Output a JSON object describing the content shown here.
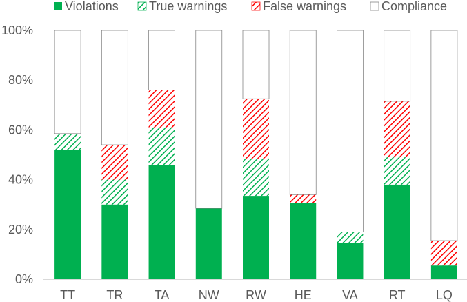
{
  "chart_data": {
    "type": "bar",
    "stacked": true,
    "categories": [
      "TT",
      "TR",
      "TA",
      "NW",
      "RW",
      "HE",
      "VA",
      "RT",
      "LQ"
    ],
    "series": [
      {
        "name": "Violations",
        "values": [
          52,
          30,
          46,
          28.5,
          33.5,
          30.5,
          14.5,
          38,
          5.5
        ],
        "color": "#00b050",
        "pattern": "solid"
      },
      {
        "name": "True warnings",
        "values": [
          6.5,
          10,
          15,
          0,
          15,
          0,
          4.5,
          11,
          0
        ],
        "color": "#00b050",
        "pattern": "hatch"
      },
      {
        "name": "False warnings",
        "values": [
          0,
          14,
          15,
          0,
          24,
          3.5,
          0,
          22.5,
          10
        ],
        "color": "#ff0000",
        "pattern": "hatch"
      },
      {
        "name": "Compliance",
        "values": [
          41.5,
          46,
          24,
          71.5,
          27.5,
          66,
          81,
          28.5,
          84.5
        ],
        "color": "#ffffff",
        "pattern": "solid"
      }
    ],
    "ylim": [
      0,
      100
    ],
    "yticks": [
      "0%",
      "20%",
      "40%",
      "60%",
      "80%",
      "100%"
    ],
    "legend_position": "top",
    "grid": false
  }
}
